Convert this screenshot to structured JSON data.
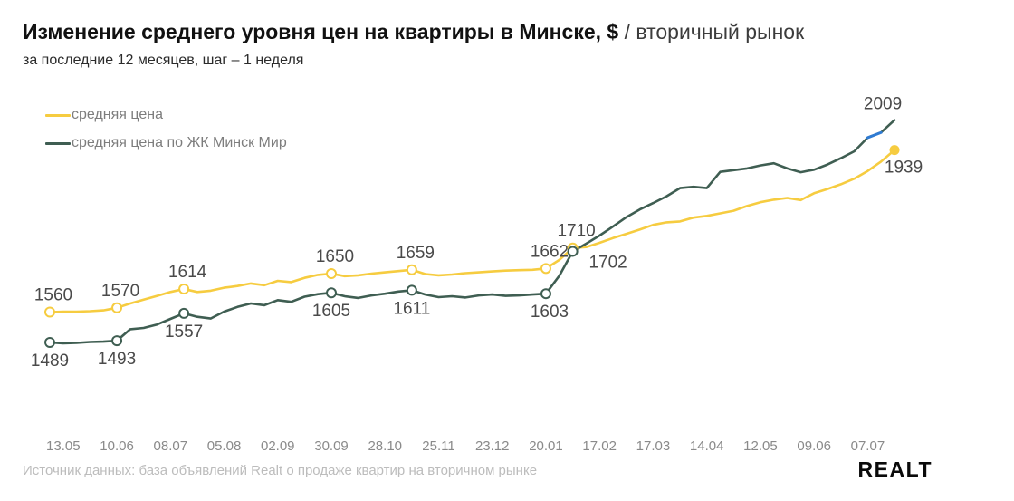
{
  "header": {
    "title_main": "Изменение среднего уровня цен на квартиры в Минске, $",
    "title_sep": "/",
    "title_secondary": "вторичный рынок",
    "subtitle": "за последние 12 месяцев, шаг – 1 неделя"
  },
  "legend": [
    {
      "label": "средняя цена",
      "color": "#F6CC40"
    },
    {
      "label": "средняя цена по ЖК Минск Мир",
      "color": "#3F5E52"
    }
  ],
  "chart_data": {
    "type": "line",
    "title": "Изменение среднего уровня цен на квартиры в Минске, $ / вторичный рынок",
    "step": "1 неделя",
    "ylim": [
      1450,
      2050
    ],
    "grid": false,
    "x_tick_labels": [
      "13.05",
      "10.06",
      "08.07",
      "05.08",
      "02.09",
      "30.09",
      "28.10",
      "25.11",
      "23.12",
      "20.01",
      "17.02",
      "17.03",
      "14.04",
      "12.05",
      "09.06",
      "07.07"
    ],
    "x_tick_indices": [
      1,
      5,
      9,
      13,
      17,
      21,
      25,
      29,
      33,
      37,
      41,
      45,
      49,
      53,
      57,
      61
    ],
    "series": [
      {
        "name": "средняя цена",
        "color": "#F6CC40",
        "values": [
          1560,
          1561,
          1561,
          1562,
          1564,
          1570,
          1580,
          1589,
          1598,
          1607,
          1614,
          1607,
          1610,
          1617,
          1621,
          1627,
          1623,
          1633,
          1630,
          1640,
          1647,
          1650,
          1644,
          1646,
          1650,
          1653,
          1656,
          1659,
          1649,
          1646,
          1648,
          1651,
          1653,
          1655,
          1657,
          1658,
          1659,
          1662,
          1682,
          1710,
          1712,
          1722,
          1733,
          1743,
          1753,
          1764,
          1770,
          1772,
          1781,
          1785,
          1791,
          1797,
          1808,
          1817,
          1823,
          1827,
          1822,
          1838,
          1848,
          1859,
          1872,
          1890,
          1912,
          1939
        ],
        "labeled_points": [
          {
            "i": 0,
            "v": 1560,
            "pos": "above"
          },
          {
            "i": 5,
            "v": 1570,
            "pos": "above"
          },
          {
            "i": 10,
            "v": 1614,
            "pos": "above"
          },
          {
            "i": 21,
            "v": 1650,
            "pos": "above"
          },
          {
            "i": 27,
            "v": 1659,
            "pos": "above"
          },
          {
            "i": 37,
            "v": 1662,
            "pos": "above"
          },
          {
            "i": 39,
            "v": 1710,
            "pos": "above"
          },
          {
            "i": 63,
            "v": 1939,
            "pos": "end-below"
          }
        ],
        "end_marker": "filled-dot"
      },
      {
        "name": "средняя цена по ЖК Минск Мир",
        "color": "#3F5E52",
        "values": [
          1489,
          1487,
          1488,
          1490,
          1491,
          1493,
          1520,
          1523,
          1531,
          1544,
          1557,
          1549,
          1545,
          1561,
          1572,
          1580,
          1576,
          1588,
          1584,
          1596,
          1602,
          1605,
          1597,
          1593,
          1599,
          1603,
          1608,
          1611,
          1601,
          1595,
          1597,
          1594,
          1599,
          1601,
          1598,
          1599,
          1601,
          1603,
          1645,
          1702,
          1720,
          1739,
          1760,
          1782,
          1800,
          1815,
          1831,
          1850,
          1853,
          1850,
          1888,
          1892,
          1896,
          1903,
          1908,
          1896,
          1887,
          1893,
          1905,
          1920,
          1936,
          1968,
          1980,
          2009
        ],
        "labeled_points": [
          {
            "i": 0,
            "v": 1489,
            "pos": "below"
          },
          {
            "i": 5,
            "v": 1493,
            "pos": "below"
          },
          {
            "i": 10,
            "v": 1557,
            "pos": "below"
          },
          {
            "i": 21,
            "v": 1605,
            "pos": "below"
          },
          {
            "i": 27,
            "v": 1611,
            "pos": "below"
          },
          {
            "i": 37,
            "v": 1603,
            "pos": "below-right"
          },
          {
            "i": 39,
            "v": 1702,
            "pos": "below-right"
          },
          {
            "i": 63,
            "v": 2009,
            "pos": "end-above"
          }
        ],
        "highlight_segment": {
          "from": 61,
          "to": 62,
          "color": "#2F7BD3"
        },
        "end_marker": "none"
      }
    ]
  },
  "footer": {
    "source": "Источник данных: база объявлений Realt о продаже квартир на вторичном рынке",
    "logo": "Realt"
  }
}
